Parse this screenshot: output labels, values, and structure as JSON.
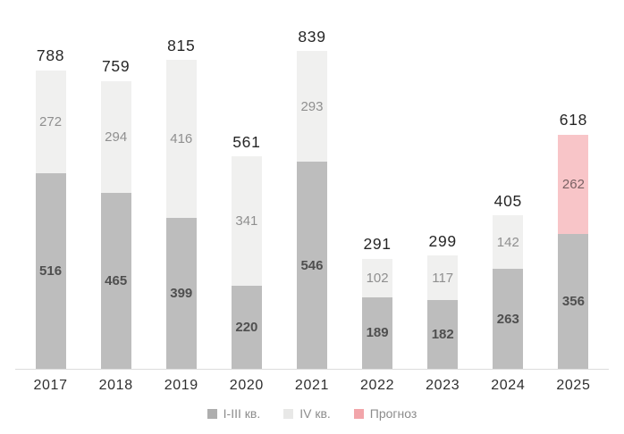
{
  "chart_data": {
    "type": "bar",
    "stacked": true,
    "title": "",
    "xlabel": "",
    "ylabel": "",
    "categories": [
      "2017",
      "2018",
      "2019",
      "2020",
      "2021",
      "2022",
      "2023",
      "2024",
      "2025"
    ],
    "series": [
      {
        "name": "I-III кв.",
        "color": "#bdbdbd",
        "label_color": "#4f4f4f",
        "label_weight": "bold",
        "values": [
          516,
          465,
          399,
          220,
          546,
          189,
          182,
          263,
          356
        ]
      },
      {
        "name": "IV кв.",
        "color": "#f0f0ef",
        "label_color": "#8f8f8f",
        "label_weight": "normal",
        "values": [
          272,
          294,
          416,
          341,
          293,
          102,
          117,
          142,
          null
        ]
      },
      {
        "name": "Прогноз",
        "color": "#f8c5c8",
        "label_color": "#7a6264",
        "label_weight": "normal",
        "values": [
          null,
          null,
          null,
          null,
          null,
          null,
          null,
          null,
          262
        ]
      }
    ],
    "totals": [
      788,
      759,
      815,
      561,
      839,
      291,
      299,
      405,
      618
    ],
    "ylim": [
      0,
      839
    ],
    "grid": false,
    "legend_position": "bottom"
  },
  "legend": {
    "items": [
      {
        "label": "I-III кв.",
        "color": "#aeaeae"
      },
      {
        "label": "IV кв.",
        "color": "#e8e8e7"
      },
      {
        "label": "Прогноз",
        "color": "#f2a5aa"
      }
    ]
  },
  "colors": {
    "background": "#ffffff",
    "axis_line": "#dcdcdc",
    "total_label": "#262626",
    "year_label": "#2f2f2f",
    "legend_text": "#8c8c8c"
  }
}
